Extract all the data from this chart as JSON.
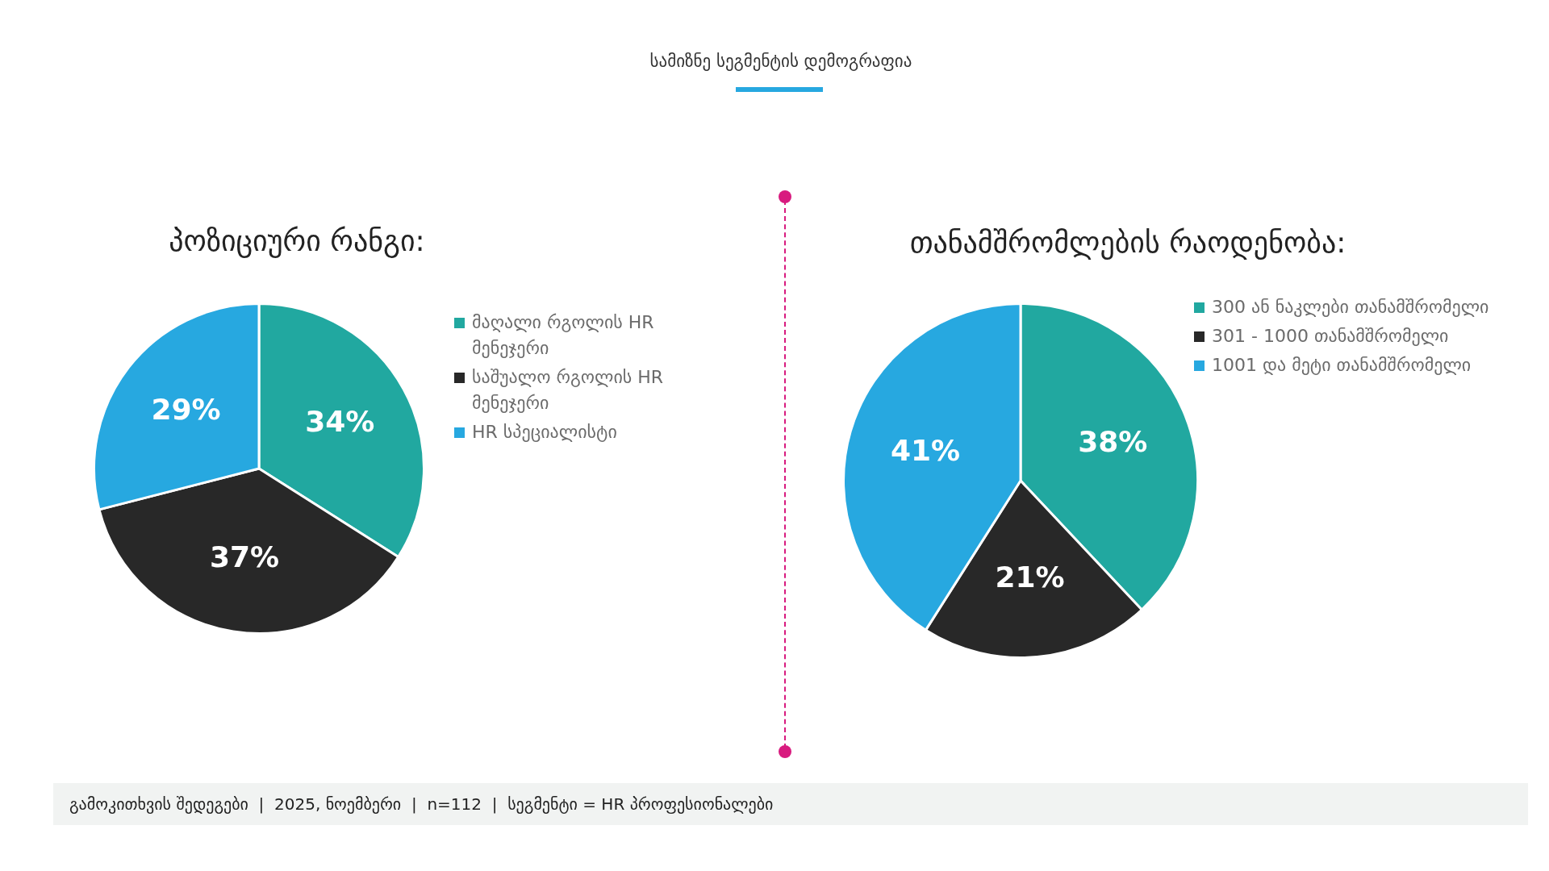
{
  "chart_data": [
    {
      "type": "pie",
      "title": "პოზიციური რანგი:",
      "categories": [
        "მაღალი რგოლის HR მენეჯერი",
        "საშუალო რგოლის HR მენეჯერი",
        "HR სპეციალისტი"
      ],
      "values": [
        34,
        37,
        29
      ],
      "colors": [
        "#21a8a0",
        "#282828",
        "#27a8e0"
      ],
      "value_labels": [
        "34%",
        "37%",
        "29%"
      ],
      "legend": "right",
      "annotations": [
        "სამიზნე სეგმენტის დემოგრაფია",
        "გამოკითხვის შედეგები  |  2025, ნოემბერი  |  n=112  |  სეგმენტი = HR პროფესიონალები"
      ]
    },
    {
      "type": "pie",
      "title": "თანამშრომლების რაოდენობა:",
      "categories": [
        "300 ან ნაკლები თანამშრომელი",
        "301 - 1000 თანამშრომელი",
        "1001 და მეტი თანამშრომელი"
      ],
      "values": [
        38,
        21,
        41
      ],
      "colors": [
        "#21a8a0",
        "#282828",
        "#27a8e0"
      ],
      "value_labels": [
        "38%",
        "21%",
        "41%"
      ],
      "legend": "right"
    }
  ]
}
